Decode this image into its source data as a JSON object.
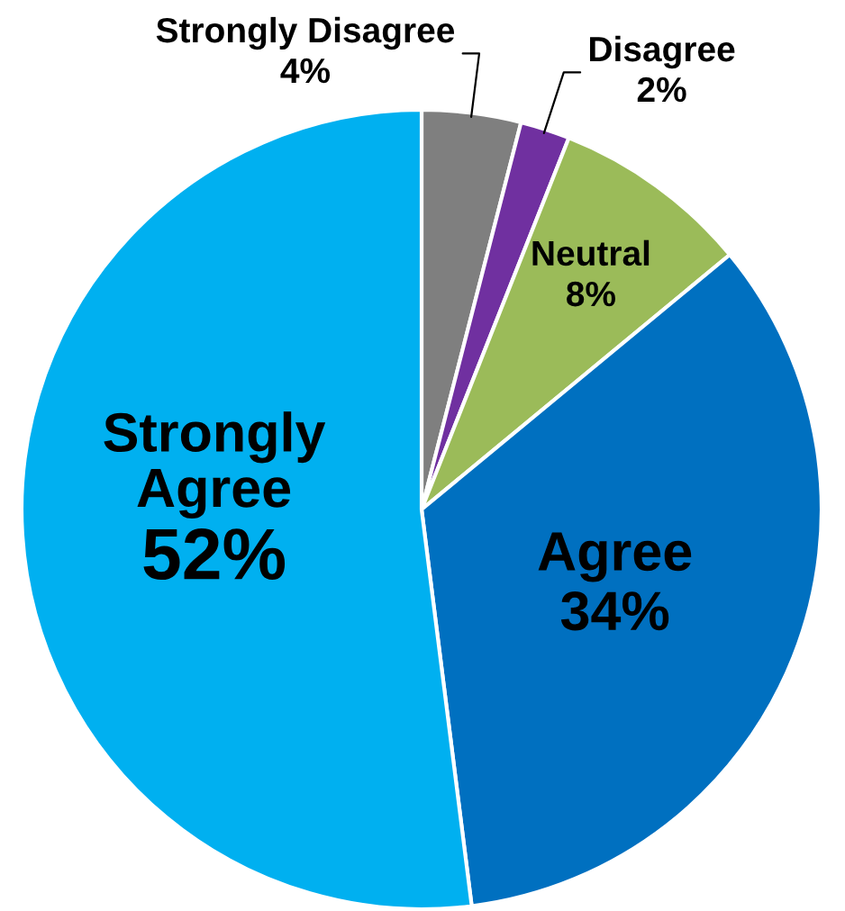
{
  "chart_data": {
    "type": "pie",
    "categories": [
      "Strongly Disagree",
      "Disagree",
      "Neutral",
      "Agree",
      "Strongly Agree"
    ],
    "values": [
      4,
      2,
      8,
      34,
      52
    ],
    "colors": [
      "#7f7f7f",
      "#7030a0",
      "#9bbb59",
      "#0070c0",
      "#00b0f0"
    ],
    "value_labels": [
      "4%",
      "2%",
      "8%",
      "34%",
      "52%"
    ]
  }
}
